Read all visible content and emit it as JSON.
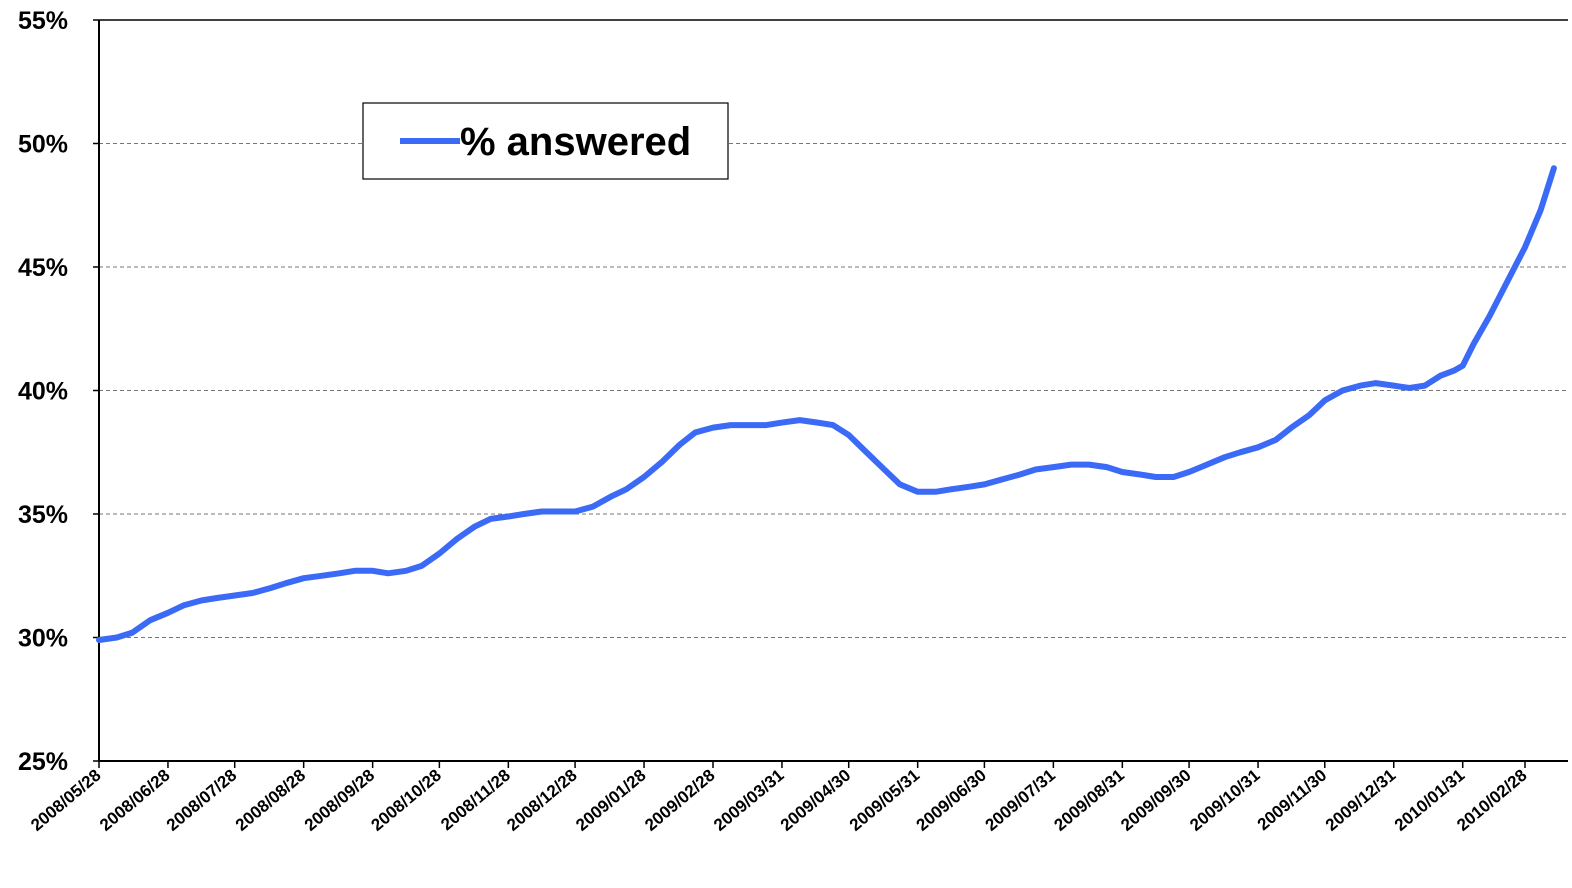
{
  "chart_data": {
    "type": "line",
    "title": "",
    "xlabel": "",
    "ylabel": "",
    "ylim": [
      0.25,
      0.55
    ],
    "yticks": [
      0.25,
      0.3,
      0.35,
      0.4,
      0.45,
      0.5,
      0.55
    ],
    "ytick_labels": [
      "25%",
      "30%",
      "35%",
      "40%",
      "45%",
      "50%",
      "55%"
    ],
    "xticks": [
      "2008/05/28",
      "2008/06/28",
      "2008/07/28",
      "2008/08/28",
      "2008/09/28",
      "2008/10/28",
      "2008/11/28",
      "2008/12/28",
      "2009/01/28",
      "2009/02/28",
      "2009/03/31",
      "2009/04/30",
      "2009/05/31",
      "2009/06/30",
      "2009/07/31",
      "2009/08/31",
      "2009/09/30",
      "2009/10/31",
      "2009/11/30",
      "2009/12/31",
      "2010/01/31",
      "2010/02/28"
    ],
    "grid": "horizontal dashed",
    "legend": "upper-left",
    "color": "#3b6af7",
    "series": [
      {
        "name": "% answered",
        "points": [
          [
            "2008/05/28",
            0.299
          ],
          [
            "2008/06/05",
            0.3
          ],
          [
            "2008/06/12",
            0.302
          ],
          [
            "2008/06/20",
            0.307
          ],
          [
            "2008/06/28",
            0.31
          ],
          [
            "2008/07/05",
            0.313
          ],
          [
            "2008/07/13",
            0.315
          ],
          [
            "2008/07/20",
            0.316
          ],
          [
            "2008/07/28",
            0.317
          ],
          [
            "2008/08/05",
            0.318
          ],
          [
            "2008/08/13",
            0.32
          ],
          [
            "2008/08/20",
            0.322
          ],
          [
            "2008/08/28",
            0.324
          ],
          [
            "2008/09/05",
            0.325
          ],
          [
            "2008/09/13",
            0.326
          ],
          [
            "2008/09/20",
            0.327
          ],
          [
            "2008/09/28",
            0.327
          ],
          [
            "2008/10/05",
            0.326
          ],
          [
            "2008/10/13",
            0.327
          ],
          [
            "2008/10/20",
            0.329
          ],
          [
            "2008/10/28",
            0.334
          ],
          [
            "2008/11/05",
            0.34
          ],
          [
            "2008/11/13",
            0.345
          ],
          [
            "2008/11/20",
            0.348
          ],
          [
            "2008/11/28",
            0.349
          ],
          [
            "2008/12/05",
            0.35
          ],
          [
            "2008/12/13",
            0.351
          ],
          [
            "2008/12/20",
            0.351
          ],
          [
            "2008/12/28",
            0.351
          ],
          [
            "2009/01/05",
            0.353
          ],
          [
            "2009/01/13",
            0.357
          ],
          [
            "2009/01/20",
            0.36
          ],
          [
            "2009/01/28",
            0.365
          ],
          [
            "2009/02/05",
            0.371
          ],
          [
            "2009/02/13",
            0.378
          ],
          [
            "2009/02/20",
            0.383
          ],
          [
            "2009/02/28",
            0.385
          ],
          [
            "2009/03/08",
            0.386
          ],
          [
            "2009/03/16",
            0.386
          ],
          [
            "2009/03/24",
            0.386
          ],
          [
            "2009/03/31",
            0.387
          ],
          [
            "2009/04/08",
            0.388
          ],
          [
            "2009/04/16",
            0.387
          ],
          [
            "2009/04/23",
            0.386
          ],
          [
            "2009/04/30",
            0.382
          ],
          [
            "2009/05/08",
            0.375
          ],
          [
            "2009/05/16",
            0.368
          ],
          [
            "2009/05/23",
            0.362
          ],
          [
            "2009/05/31",
            0.359
          ],
          [
            "2009/06/08",
            0.359
          ],
          [
            "2009/06/15",
            0.36
          ],
          [
            "2009/06/23",
            0.361
          ],
          [
            "2009/06/30",
            0.362
          ],
          [
            "2009/07/08",
            0.364
          ],
          [
            "2009/07/16",
            0.366
          ],
          [
            "2009/07/23",
            0.368
          ],
          [
            "2009/07/31",
            0.369
          ],
          [
            "2009/08/08",
            0.37
          ],
          [
            "2009/08/16",
            0.37
          ],
          [
            "2009/08/24",
            0.369
          ],
          [
            "2009/08/31",
            0.367
          ],
          [
            "2009/09/08",
            0.366
          ],
          [
            "2009/09/15",
            0.365
          ],
          [
            "2009/09/23",
            0.365
          ],
          [
            "2009/09/30",
            0.367
          ],
          [
            "2009/10/08",
            0.37
          ],
          [
            "2009/10/16",
            0.373
          ],
          [
            "2009/10/23",
            0.375
          ],
          [
            "2009/10/31",
            0.377
          ],
          [
            "2009/11/08",
            0.38
          ],
          [
            "2009/11/15",
            0.385
          ],
          [
            "2009/11/23",
            0.39
          ],
          [
            "2009/11/30",
            0.396
          ],
          [
            "2009/12/08",
            0.4
          ],
          [
            "2009/12/16",
            0.402
          ],
          [
            "2009/12/23",
            0.403
          ],
          [
            "2009/12/31",
            0.402
          ],
          [
            "2010/01/07",
            0.401
          ],
          [
            "2010/01/14",
            0.402
          ],
          [
            "2010/01/21",
            0.406
          ],
          [
            "2010/01/27",
            0.408
          ],
          [
            "2010/01/31",
            0.41
          ],
          [
            "2010/02/05",
            0.419
          ],
          [
            "2010/02/12",
            0.43
          ],
          [
            "2010/02/20",
            0.444
          ],
          [
            "2010/02/28",
            0.458
          ],
          [
            "2010/03/07",
            0.473
          ],
          [
            "2010/03/13",
            0.49
          ]
        ]
      }
    ]
  }
}
